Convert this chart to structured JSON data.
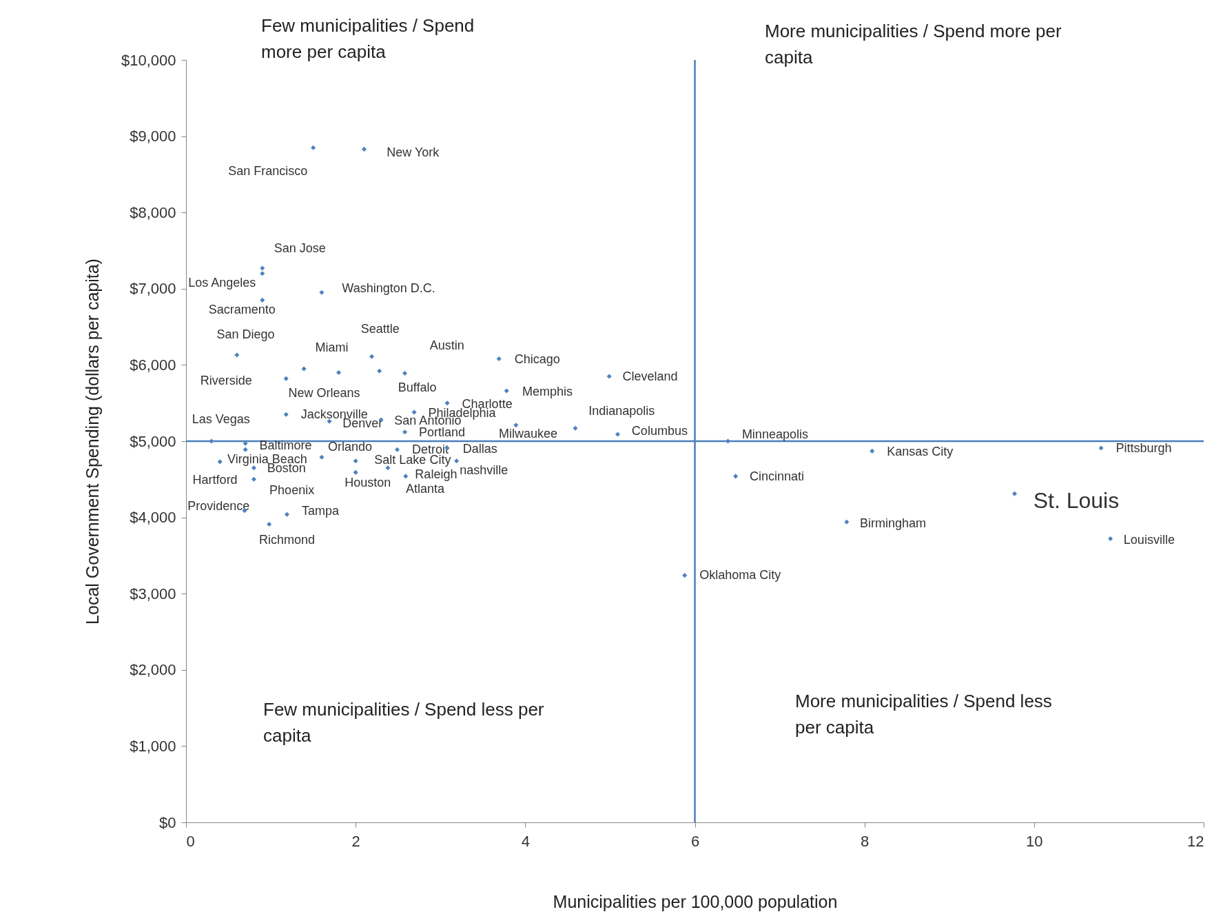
{
  "chart_data": {
    "type": "scatter",
    "xlabel": "Municipalities per 100,000 population",
    "ylabel": "Local Government Spending  (dollars per capita)",
    "x": [
      1.5,
      2.1,
      0.9,
      0.9,
      0.9,
      1.6,
      0.6,
      1.18,
      1.39,
      1.8,
      2.19,
      2.28,
      2.58,
      3.69,
      3.78,
      4.99,
      3.08,
      2.69,
      1.18,
      1.69,
      2.3,
      2.58,
      3.89,
      4.59,
      5.09,
      0.3,
      0.7,
      0.7,
      0.4,
      0.8,
      0.8,
      1.6,
      2.0,
      2.0,
      2.49,
      3.08,
      3.19,
      2.38,
      2.59,
      0.69,
      1.19,
      0.98,
      6.39,
      6.48,
      8.09,
      10.79,
      9.77,
      7.79,
      10.9,
      5.88
    ],
    "values": [
      8850,
      8830,
      7270,
      7200,
      6850,
      6950,
      6130,
      5820,
      5950,
      5900,
      6110,
      5920,
      5890,
      6080,
      5660,
      5850,
      5500,
      5380,
      5350,
      5260,
      5280,
      5120,
      5210,
      5170,
      5090,
      5000,
      4970,
      4890,
      4730,
      4650,
      4500,
      4790,
      4590,
      4740,
      4890,
      4910,
      4740,
      4650,
      4540,
      4090,
      4040,
      3910,
      5000,
      4540,
      4870,
      4910,
      4310,
      3940,
      3720,
      3240
    ],
    "color": "#4f81bd",
    "marker": "diamond",
    "grid": false,
    "legend": false,
    "xlim": [
      0,
      12
    ],
    "xticks": [
      0,
      2,
      4,
      6,
      8,
      10,
      12
    ],
    "ylim": [
      0,
      10000
    ],
    "yticks": [
      {
        "value": 0,
        "label": "$0"
      },
      {
        "value": 1000,
        "label": "$1,000"
      },
      {
        "value": 2000,
        "label": "$2,000"
      },
      {
        "value": 3000,
        "label": "$3,000"
      },
      {
        "value": 4000,
        "label": "$4,000"
      },
      {
        "value": 5000,
        "label": "$5,000"
      },
      {
        "value": 6000,
        "label": "$6,000"
      },
      {
        "value": 7000,
        "label": "$7,000"
      },
      {
        "value": 8000,
        "label": "$8,000"
      },
      {
        "value": 9000,
        "label": "$9,000"
      },
      {
        "value": 10000,
        "label": "$10,000"
      }
    ],
    "ref_lines": [
      {
        "axis": "x",
        "value": 6,
        "color": "#4a7ebb"
      },
      {
        "axis": "y",
        "value": 5000,
        "color": "#4a7ebb"
      }
    ],
    "annotations": [
      "Few municipalities / Spend more per capita",
      "More municipalities / Spend more per capita",
      "Few municipalities / Spend less per capita",
      "More municipalities / Spend less per capita",
      {
        "text": "San Francisco",
        "x": 1.5,
        "y": 8850
      },
      {
        "text": "New York",
        "x": 2.1,
        "y": 8830
      },
      {
        "text": "San Jose",
        "x": 0.9,
        "y": 7270
      },
      {
        "text": "Los Angeles",
        "x": 0.9,
        "y": 7200
      },
      {
        "text": "Sacramento",
        "x": 0.9,
        "y": 6850
      },
      {
        "text": "Washington D.C.",
        "x": 1.6,
        "y": 6950
      },
      {
        "text": "San Diego",
        "x": 0.6,
        "y": 6130
      },
      {
        "text": "Riverside",
        "x": 1.18,
        "y": 5820
      },
      {
        "text": "New Orleans",
        "x": 1.39,
        "y": 5950
      },
      {
        "text": "Miami",
        "x": 1.8,
        "y": 5900
      },
      {
        "text": "Seattle",
        "x": 2.19,
        "y": 6110
      },
      {
        "text": "Buffalo",
        "x": 2.28,
        "y": 5920
      },
      {
        "text": "Austin",
        "x": 2.58,
        "y": 5890
      },
      {
        "text": "Chicago",
        "x": 3.69,
        "y": 6080
      },
      {
        "text": "Memphis",
        "x": 3.78,
        "y": 5660
      },
      {
        "text": "Cleveland",
        "x": 4.99,
        "y": 5850
      },
      {
        "text": "Charlotte",
        "x": 3.08,
        "y": 5500
      },
      {
        "text": "Philadelphia",
        "x": 2.69,
        "y": 5380
      },
      {
        "text": "Jacksonville",
        "x": 1.18,
        "y": 5350
      },
      {
        "text": "Denver",
        "x": 1.69,
        "y": 5260
      },
      {
        "text": "San Antonio",
        "x": 2.3,
        "y": 5280
      },
      {
        "text": "Portland",
        "x": 2.58,
        "y": 5120
      },
      {
        "text": "Milwaukee",
        "x": 3.89,
        "y": 5210
      },
      {
        "text": "Indianapolis",
        "x": 4.59,
        "y": 5170
      },
      {
        "text": "Columbus",
        "x": 5.09,
        "y": 5090
      },
      {
        "text": "Las Vegas",
        "x": 0.3,
        "y": 5000
      },
      {
        "text": "Baltimore",
        "x": 0.7,
        "y": 4970
      },
      {
        "text": "Virginia Beach",
        "x": 0.7,
        "y": 4890
      },
      {
        "text": "Hartford",
        "x": 0.4,
        "y": 4730
      },
      {
        "text": "Boston",
        "x": 0.8,
        "y": 4650
      },
      {
        "text": "Phoenix",
        "x": 0.8,
        "y": 4500
      },
      {
        "text": "Orlando",
        "x": 1.6,
        "y": 4790
      },
      {
        "text": "Houston",
        "x": 2.0,
        "y": 4590
      },
      {
        "text": "Salt Lake City",
        "x": 2.0,
        "y": 4740
      },
      {
        "text": "Detroit",
        "x": 2.49,
        "y": 4890
      },
      {
        "text": "Dallas",
        "x": 3.08,
        "y": 4910
      },
      {
        "text": "nashville",
        "x": 3.19,
        "y": 4740
      },
      {
        "text": "Atlanta",
        "x": 2.38,
        "y": 4650
      },
      {
        "text": "Raleigh",
        "x": 2.59,
        "y": 4540
      },
      {
        "text": "Providence",
        "x": 0.69,
        "y": 4090
      },
      {
        "text": "Tampa",
        "x": 1.19,
        "y": 4040
      },
      {
        "text": "Richmond",
        "x": 0.98,
        "y": 3910
      },
      {
        "text": "Minneapolis",
        "x": 6.39,
        "y": 5000
      },
      {
        "text": "Cincinnati",
        "x": 6.48,
        "y": 4540
      },
      {
        "text": "Kansas City",
        "x": 8.09,
        "y": 4870
      },
      {
        "text": "Pittsburgh",
        "x": 10.79,
        "y": 4910
      },
      {
        "text": "St. Louis",
        "x": 9.77,
        "y": 4310
      },
      {
        "text": "Birmingham",
        "x": 7.79,
        "y": 3940
      },
      {
        "text": "Louisville",
        "x": 10.9,
        "y": 3720
      },
      {
        "text": "Oklahoma City",
        "x": 5.88,
        "y": 3240
      }
    ]
  }
}
